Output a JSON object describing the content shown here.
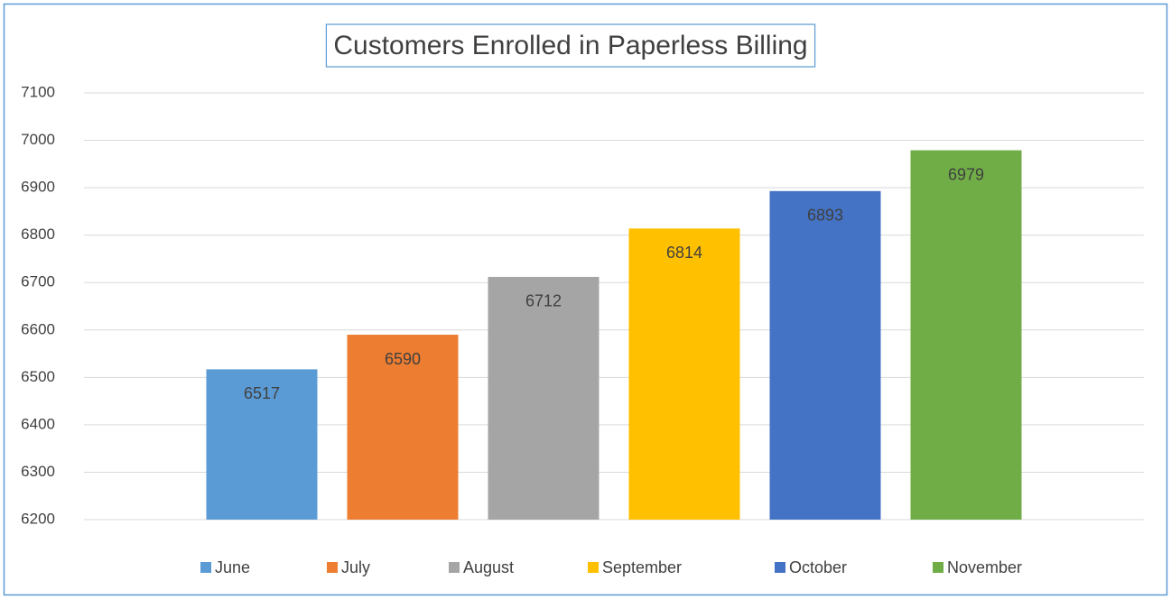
{
  "chart_data": {
    "type": "bar",
    "title": "Customers Enrolled in Paperless Billing",
    "series": [
      {
        "name": "June",
        "color": "#5b9bd5",
        "values": [
          6517
        ]
      },
      {
        "name": "July",
        "color": "#ed7d31",
        "values": [
          6590
        ]
      },
      {
        "name": "August",
        "color": "#a5a5a5",
        "values": [
          6712
        ]
      },
      {
        "name": "September",
        "color": "#ffc000",
        "values": [
          6814
        ]
      },
      {
        "name": "October",
        "color": "#4472c4",
        "values": [
          6893
        ]
      },
      {
        "name": "November",
        "color": "#70ad47",
        "values": [
          6979
        ]
      }
    ],
    "ylim": [
      6200,
      7100
    ],
    "yticks": [
      6200,
      6300,
      6400,
      6500,
      6600,
      6700,
      6800,
      6900,
      7000,
      7100
    ],
    "grid": true,
    "legend": "bottom"
  }
}
